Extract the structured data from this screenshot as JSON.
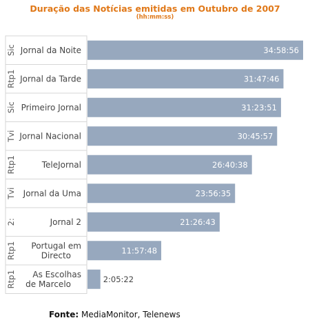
{
  "chart_data": {
    "type": "bar",
    "orientation": "horizontal",
    "title": "Duração das Notícias emitidas em Outubro de 2007",
    "subtitle": "(hh:mm:ss)",
    "categories": [
      {
        "channel": "Sic",
        "program": "Jornal da Noite"
      },
      {
        "channel": "Rtp1",
        "program": "Jornal da Tarde"
      },
      {
        "channel": "Sic",
        "program": "Primeiro Jornal"
      },
      {
        "channel": "Tvi",
        "program": "Jornal Nacional"
      },
      {
        "channel": "Rtp1",
        "program": "TeleJornal"
      },
      {
        "channel": "Tvi",
        "program": "Jornal da Uma"
      },
      {
        "channel": "2:",
        "program": "Jornal 2"
      },
      {
        "channel": "Rtp1",
        "program": "Portugal em Directo"
      },
      {
        "channel": "Rtp1",
        "program": "As Escolhas de Marcelo"
      }
    ],
    "values": [
      "34:58:56",
      "31:47:46",
      "31:23:51",
      "30:45:57",
      "26:40:38",
      "23:56:35",
      "21:26:43",
      "11:57:48",
      "2:05:22"
    ],
    "bar_color": "#97a8be",
    "title_color": "#e07818",
    "legend": "none",
    "grid": false
  },
  "source": {
    "label": "Fonte:",
    "text": "MediaMonitor, Telenews"
  }
}
